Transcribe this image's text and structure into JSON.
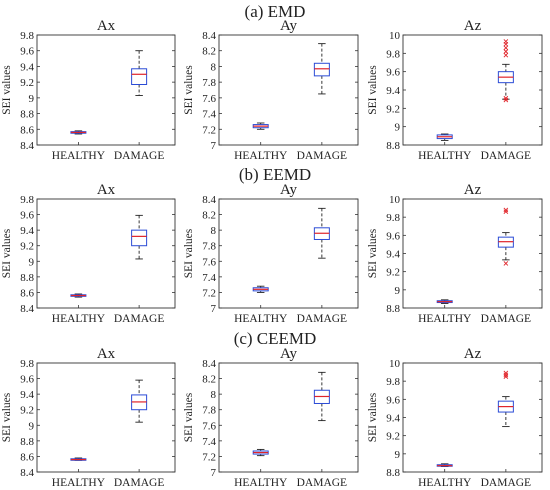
{
  "sections": [
    {
      "title": "(a) EMD"
    },
    {
      "title": "(b) EEMD"
    },
    {
      "title": "(c) CEEMD"
    }
  ],
  "chart_data": [
    {
      "type": "box",
      "section": "(a) EMD",
      "title": "Ax",
      "ylabel": "SEI values",
      "categories": [
        "HEALTHY",
        "DAMAGE"
      ],
      "ylim": [
        8.4,
        9.8
      ],
      "yticks": [
        "8.4",
        "8.6",
        "8.8",
        "9",
        "9.2",
        "9.4",
        "9.6",
        "9.8"
      ],
      "boxes": [
        {
          "category": "HEALTHY",
          "min": 8.54,
          "q1": 8.55,
          "median": 8.56,
          "q3": 8.57,
          "max": 8.58,
          "outliers": []
        },
        {
          "category": "DAMAGE",
          "min": 9.03,
          "q1": 9.17,
          "median": 9.3,
          "q3": 9.37,
          "max": 9.6,
          "outliers": []
        }
      ]
    },
    {
      "type": "box",
      "section": "(a) EMD",
      "title": "Ay",
      "ylabel": "SEI values",
      "categories": [
        "HEALTHY",
        "DAMAGE"
      ],
      "ylim": [
        7,
        8.4
      ],
      "yticks": [
        "7",
        "7.2",
        "7.4",
        "7.6",
        "7.8",
        "8",
        "8.2",
        "8.4"
      ],
      "boxes": [
        {
          "category": "HEALTHY",
          "min": 7.2,
          "q1": 7.22,
          "median": 7.24,
          "q3": 7.26,
          "max": 7.28,
          "outliers": []
        },
        {
          "category": "DAMAGE",
          "min": 7.65,
          "q1": 7.88,
          "median": 7.97,
          "q3": 8.04,
          "max": 8.29,
          "outliers": []
        }
      ]
    },
    {
      "type": "box",
      "section": "(a) EMD",
      "title": "Az",
      "ylabel": "SEI values",
      "categories": [
        "HEALTHY",
        "DAMAGE"
      ],
      "ylim": [
        8.8,
        10
      ],
      "yticks": [
        "8.8",
        "9",
        "9.2",
        "9.4",
        "9.6",
        "9.8",
        "10"
      ],
      "boxes": [
        {
          "category": "HEALTHY",
          "min": 8.85,
          "q1": 8.87,
          "median": 8.89,
          "q3": 8.91,
          "max": 8.92,
          "outliers": []
        },
        {
          "category": "DAMAGE",
          "min": 9.3,
          "q1": 9.48,
          "median": 9.54,
          "q3": 9.6,
          "max": 9.68,
          "outliers": [
            9.78,
            9.82,
            9.86,
            9.9,
            9.93,
            9.29,
            9.31
          ]
        }
      ]
    },
    {
      "type": "box",
      "section": "(b) EEMD",
      "title": "Ax",
      "ylabel": "SEI values",
      "categories": [
        "HEALTHY",
        "DAMAGE"
      ],
      "ylim": [
        8.4,
        9.8
      ],
      "yticks": [
        "8.4",
        "8.6",
        "8.8",
        "9",
        "9.2",
        "9.4",
        "9.6",
        "9.8"
      ],
      "boxes": [
        {
          "category": "HEALTHY",
          "min": 8.54,
          "q1": 8.55,
          "median": 8.56,
          "q3": 8.57,
          "max": 8.58,
          "outliers": []
        },
        {
          "category": "DAMAGE",
          "min": 9.03,
          "q1": 9.2,
          "median": 9.32,
          "q3": 9.4,
          "max": 9.59,
          "outliers": []
        }
      ]
    },
    {
      "type": "box",
      "section": "(b) EEMD",
      "title": "Ay",
      "ylabel": "SEI values",
      "categories": [
        "HEALTHY",
        "DAMAGE"
      ],
      "ylim": [
        7,
        8.4
      ],
      "yticks": [
        "7",
        "7.2",
        "7.4",
        "7.6",
        "7.8",
        "8",
        "8.2",
        "8.4"
      ],
      "boxes": [
        {
          "category": "HEALTHY",
          "min": 7.2,
          "q1": 7.22,
          "median": 7.24,
          "q3": 7.26,
          "max": 7.28,
          "outliers": []
        },
        {
          "category": "DAMAGE",
          "min": 7.64,
          "q1": 7.88,
          "median": 7.96,
          "q3": 8.03,
          "max": 8.28,
          "outliers": []
        }
      ]
    },
    {
      "type": "box",
      "section": "(b) EEMD",
      "title": "Az",
      "ylabel": "SEI values",
      "categories": [
        "HEALTHY",
        "DAMAGE"
      ],
      "ylim": [
        8.8,
        10
      ],
      "yticks": [
        "8.8",
        "9",
        "9.2",
        "9.4",
        "9.6",
        "9.8",
        "10"
      ],
      "boxes": [
        {
          "category": "HEALTHY",
          "min": 8.85,
          "q1": 8.86,
          "median": 8.87,
          "q3": 8.88,
          "max": 8.89,
          "outliers": []
        },
        {
          "category": "DAMAGE",
          "min": 9.33,
          "q1": 9.47,
          "median": 9.53,
          "q3": 9.58,
          "max": 9.63,
          "outliers": [
            9.86,
            9.88,
            9.29
          ]
        }
      ]
    },
    {
      "type": "box",
      "section": "(c) CEEMD",
      "title": "Ax",
      "ylabel": "SEI values",
      "categories": [
        "HEALTHY",
        "DAMAGE"
      ],
      "ylim": [
        8.4,
        9.8
      ],
      "yticks": [
        "8.4",
        "8.6",
        "8.8",
        "9",
        "9.2",
        "9.4",
        "9.6",
        "9.8"
      ],
      "boxes": [
        {
          "category": "HEALTHY",
          "min": 8.55,
          "q1": 8.555,
          "median": 8.56,
          "q3": 8.57,
          "max": 8.58,
          "outliers": []
        },
        {
          "category": "DAMAGE",
          "min": 9.04,
          "q1": 9.2,
          "median": 9.3,
          "q3": 9.39,
          "max": 9.58,
          "outliers": []
        }
      ]
    },
    {
      "type": "box",
      "section": "(c) CEEMD",
      "title": "Ay",
      "ylabel": "SEI values",
      "categories": [
        "HEALTHY",
        "DAMAGE"
      ],
      "ylim": [
        7,
        8.4
      ],
      "yticks": [
        "7",
        "7.2",
        "7.4",
        "7.6",
        "7.8",
        "8",
        "8.2",
        "8.4"
      ],
      "boxes": [
        {
          "category": "HEALTHY",
          "min": 7.21,
          "q1": 7.23,
          "median": 7.25,
          "q3": 7.27,
          "max": 7.29,
          "outliers": []
        },
        {
          "category": "DAMAGE",
          "min": 7.66,
          "q1": 7.88,
          "median": 7.97,
          "q3": 8.05,
          "max": 8.28,
          "outliers": []
        }
      ]
    },
    {
      "type": "box",
      "section": "(c) CEEMD",
      "title": "Az",
      "ylabel": "SEI values",
      "categories": [
        "HEALTHY",
        "DAMAGE"
      ],
      "ylim": [
        8.8,
        10
      ],
      "yticks": [
        "8.8",
        "9",
        "9.2",
        "9.4",
        "9.6",
        "9.8",
        "10"
      ],
      "boxes": [
        {
          "category": "HEALTHY",
          "min": 8.86,
          "q1": 8.865,
          "median": 8.87,
          "q3": 8.88,
          "max": 8.89,
          "outliers": []
        },
        {
          "category": "DAMAGE",
          "min": 9.3,
          "q1": 9.46,
          "median": 9.52,
          "q3": 9.58,
          "max": 9.63,
          "outliers": [
            9.85,
            9.87,
            9.89
          ]
        }
      ]
    }
  ]
}
